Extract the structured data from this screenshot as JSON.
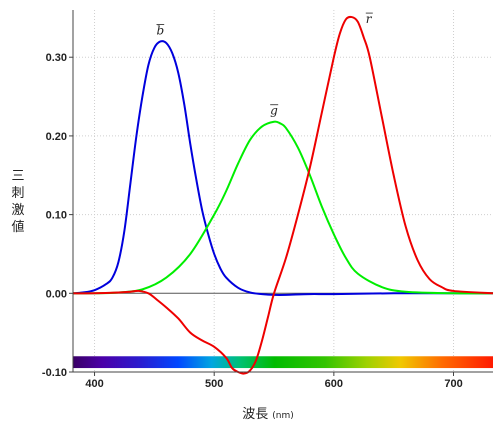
{
  "chart_data": {
    "type": "line",
    "title": "",
    "ylabel": "三刺激値",
    "xlabel": "波長",
    "xlabel_unit": "(nm)",
    "xlim": [
      382,
      733
    ],
    "ylim": [
      -0.1,
      0.36
    ],
    "x_ticks": [
      400,
      500,
      600,
      700
    ],
    "x_tick_labels": [
      "400",
      "500",
      "600",
      "700"
    ],
    "y_ticks": [
      -0.1,
      0.0,
      0.1,
      0.2,
      0.3
    ],
    "y_tick_labels": [
      "-0.10",
      "0.00",
      "0.10",
      "0.20",
      "0.30"
    ],
    "grid": "dotted",
    "spectrum_band": true,
    "series": [
      {
        "name": "b",
        "color": "#0000dd",
        "x": [
          382,
          390,
          400,
          410,
          415,
          420,
          425,
          430,
          435,
          440,
          445,
          450,
          455,
          460,
          465,
          470,
          475,
          480,
          485,
          490,
          495,
          500,
          505,
          510,
          520,
          530,
          540,
          550,
          560,
          580,
          600,
          650,
          700,
          733
        ],
        "y": [
          0.0,
          0.001,
          0.004,
          0.012,
          0.02,
          0.04,
          0.08,
          0.14,
          0.2,
          0.25,
          0.29,
          0.312,
          0.32,
          0.318,
          0.305,
          0.28,
          0.24,
          0.19,
          0.145,
          0.105,
          0.075,
          0.05,
          0.032,
          0.02,
          0.007,
          0.001,
          -0.001,
          -0.002,
          -0.002,
          -0.001,
          -0.001,
          0.0,
          0.0,
          0.0
        ]
      },
      {
        "name": "g",
        "color": "#00ee00",
        "x": [
          382,
          400,
          420,
          440,
          460,
          480,
          500,
          510,
          520,
          530,
          540,
          550,
          555,
          560,
          570,
          580,
          590,
          600,
          610,
          620,
          640,
          660,
          700,
          733
        ],
        "y": [
          0.0,
          0.0,
          0.001,
          0.005,
          0.02,
          0.05,
          0.1,
          0.13,
          0.165,
          0.195,
          0.212,
          0.218,
          0.216,
          0.21,
          0.185,
          0.15,
          0.11,
          0.075,
          0.045,
          0.025,
          0.008,
          0.002,
          0.0,
          0.0
        ]
      },
      {
        "name": "r",
        "color": "#ee0000",
        "x": [
          382,
          400,
          420,
          430,
          437,
          445,
          452,
          460,
          470,
          480,
          490,
          500,
          510,
          515,
          520,
          525,
          530,
          535,
          540,
          545,
          550,
          560,
          570,
          580,
          590,
          600,
          605,
          610,
          615,
          620,
          625,
          630,
          640,
          650,
          660,
          670,
          680,
          690,
          700,
          733
        ],
        "y": [
          0.0,
          0.0,
          0.001,
          0.002,
          0.003,
          0.0,
          -0.008,
          -0.018,
          -0.032,
          -0.05,
          -0.06,
          -0.068,
          -0.082,
          -0.095,
          -0.1,
          -0.102,
          -0.098,
          -0.085,
          -0.06,
          -0.03,
          0.0,
          0.045,
          0.1,
          0.16,
          0.23,
          0.3,
          0.33,
          0.348,
          0.351,
          0.345,
          0.325,
          0.3,
          0.225,
          0.15,
          0.085,
          0.042,
          0.018,
          0.008,
          0.003,
          0.0
        ]
      }
    ]
  }
}
